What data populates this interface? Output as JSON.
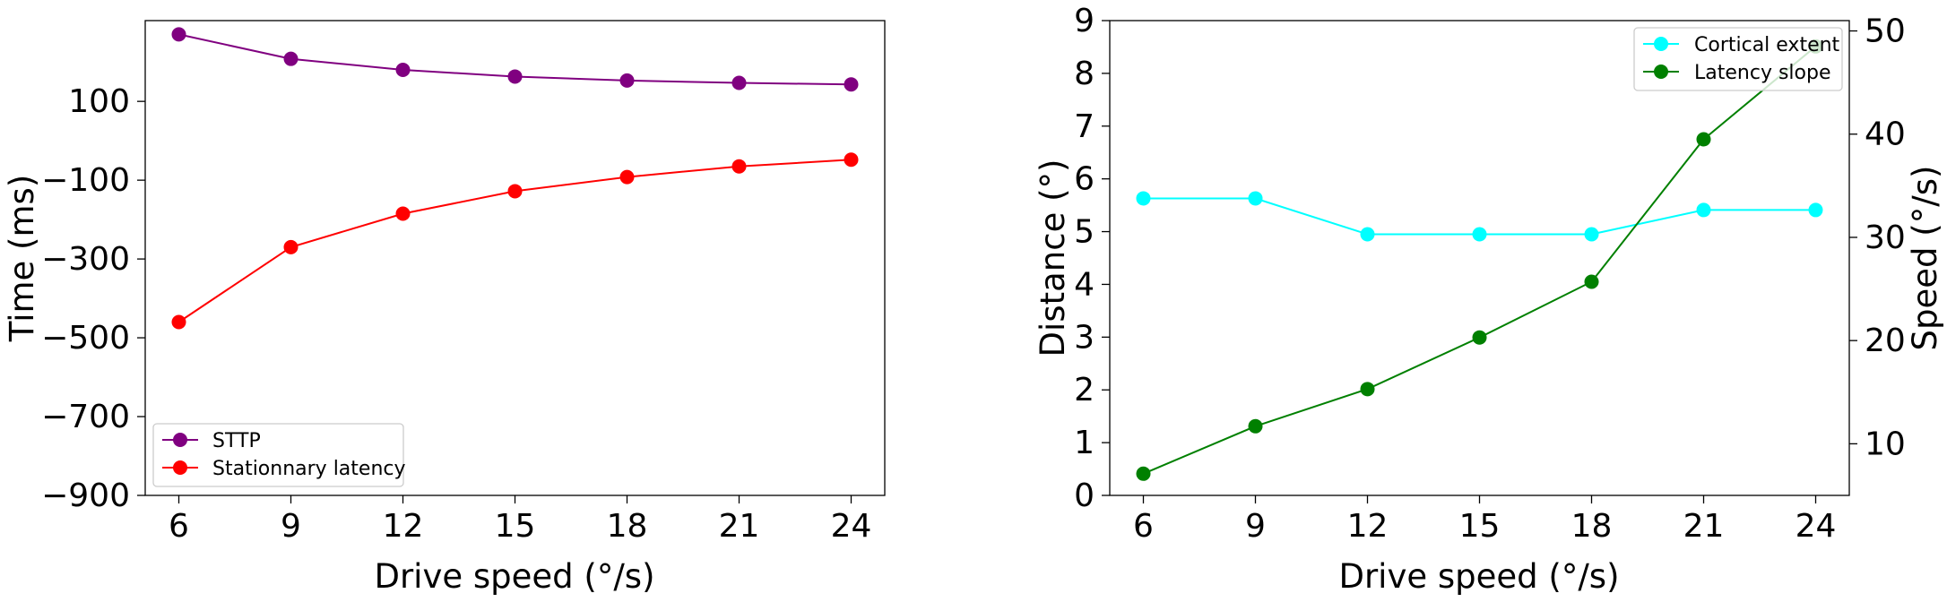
{
  "chart_data": [
    {
      "type": "line",
      "xlabel": "Drive speed (°/s)",
      "ylabel": "Time (ms)",
      "x": [
        6,
        9,
        12,
        15,
        18,
        21,
        24
      ],
      "xlim": [
        5.1,
        24.9
      ],
      "ylim": [
        -900,
        305
      ],
      "xticks": [
        6,
        9,
        12,
        15,
        18,
        21,
        24
      ],
      "yticks": [
        100,
        -100,
        -300,
        -500,
        -700,
        -900
      ],
      "ytick_labels": [
        "100",
        "−100",
        "−300",
        "−500",
        "−700",
        "−900"
      ],
      "legend_position": "lower-left",
      "series": [
        {
          "name": "STTP",
          "color": "#800080",
          "values": [
            270,
            208,
            180,
            163,
            153,
            147,
            143
          ]
        },
        {
          "name": "Stationnary latency",
          "color": "#ff0000",
          "values": [
            -460,
            -270,
            -185,
            -128,
            -92,
            -65,
            -48
          ]
        }
      ]
    },
    {
      "type": "line",
      "xlabel": "Drive speed (°/s)",
      "ylabel": "Distance (°)",
      "y2label": "Speed (°/s)",
      "x": [
        6,
        9,
        12,
        15,
        18,
        21,
        24
      ],
      "xlim": [
        5.1,
        24.9
      ],
      "ylim": [
        0,
        9
      ],
      "y2lim": [
        5,
        51
      ],
      "xticks": [
        6,
        9,
        12,
        15,
        18,
        21,
        24
      ],
      "yticks": [
        0,
        1,
        2,
        3,
        4,
        5,
        6,
        7,
        8,
        9
      ],
      "y2ticks": [
        10,
        20,
        30,
        40,
        50
      ],
      "legend_position": "top-right",
      "series": [
        {
          "name": "Cortical extent",
          "color": "#00ffff",
          "axis": "left",
          "values": [
            5.63,
            5.63,
            4.95,
            4.95,
            4.95,
            5.41,
            5.41
          ]
        },
        {
          "name": "Latency slope",
          "color": "#008000",
          "axis": "right",
          "values": [
            7.1,
            11.7,
            15.3,
            20.3,
            25.7,
            39.5,
            48.5
          ]
        }
      ]
    }
  ]
}
